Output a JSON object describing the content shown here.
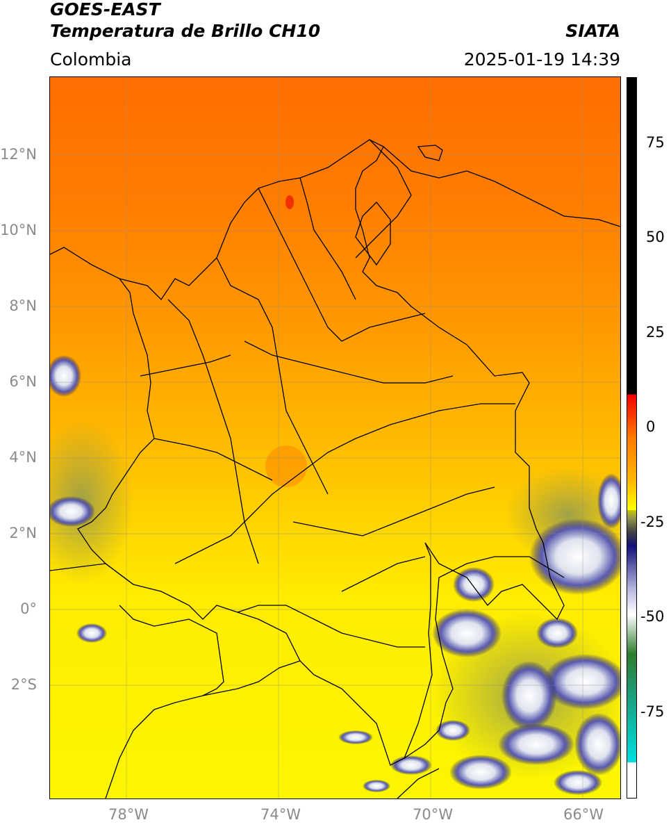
{
  "header": {
    "title_line1": "GOES-EAST",
    "title_line2": "Temperatura de Brillo CH10",
    "region": "Colombia",
    "agency": "SIATA",
    "datetime": "2025-01-19 14:39"
  },
  "map": {
    "lat_ticks": [
      "12°N",
      "10°N",
      "8°N",
      "6°N",
      "4°N",
      "2°N",
      "0°",
      "2°S"
    ],
    "lon_ticks": [
      "78°W",
      "74°W",
      "70°W",
      "66°W"
    ],
    "extent": {
      "lon_min": -80,
      "lon_max": -65,
      "lat_min": -5,
      "lat_max": 14
    }
  },
  "colorbar": {
    "ticks": [
      "75",
      "50",
      "25",
      "0",
      "-25",
      "-50",
      "-75"
    ],
    "range": [
      -95,
      90
    ],
    "colors": {
      "warm_max": "#000000",
      "red": "#f20000",
      "orange": "#ff7a00",
      "yellow": "#ffff00",
      "olive": "#9a9a4a",
      "navy": "#10107a",
      "white": "#ffffff",
      "green": "#2e7d2e",
      "cyan": "#00e0e0"
    }
  }
}
